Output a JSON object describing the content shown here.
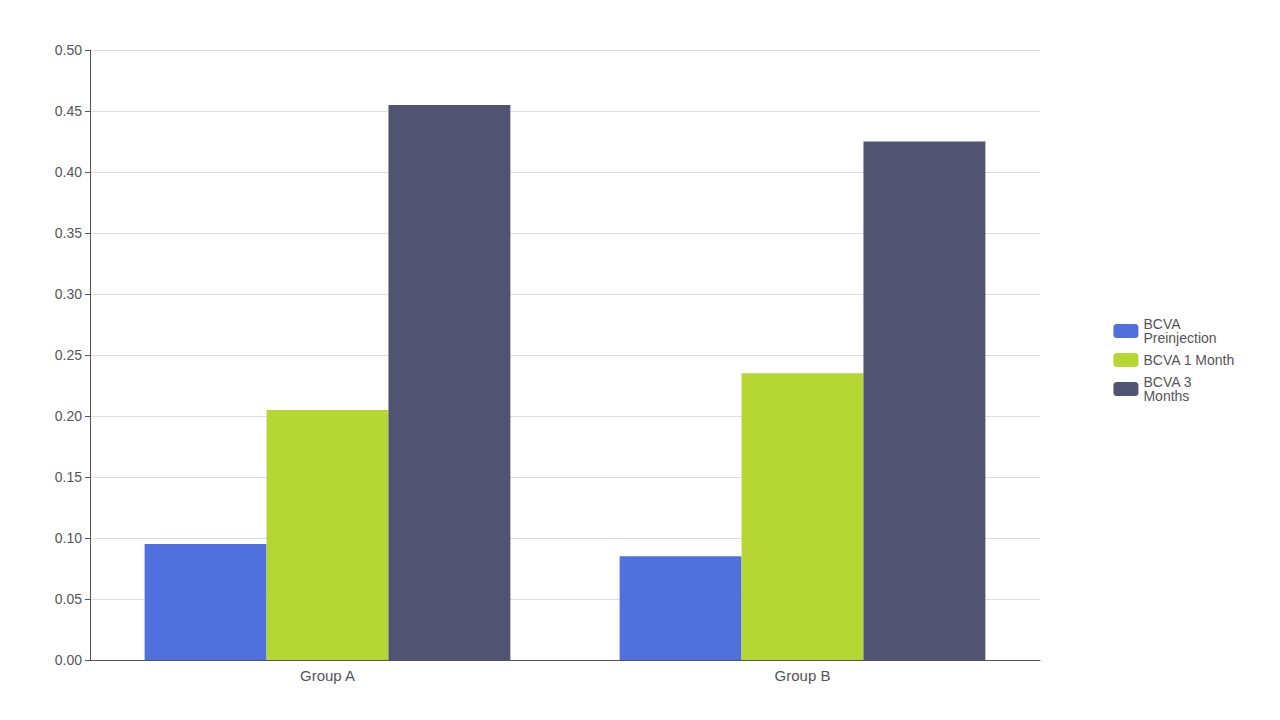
{
  "chart_data": {
    "type": "bar",
    "categories": [
      "Group A",
      "Group B"
    ],
    "series": [
      {
        "name": "BCVA\nPreinjection",
        "values": [
          0.095,
          0.085
        ]
      },
      {
        "name": "BCVA 1 Month",
        "values": [
          0.205,
          0.235
        ]
      },
      {
        "name": "BCVA 3\nMonths",
        "values": [
          0.455,
          0.425
        ]
      }
    ],
    "ylim": [
      0,
      0.5
    ],
    "yticks": [
      {
        "value": 0,
        "label": "0.00"
      },
      {
        "value": 0.05,
        "label": "0.05"
      },
      {
        "value": 0.1,
        "label": "0.10"
      },
      {
        "value": 0.15,
        "label": "0.15"
      },
      {
        "value": 0.2,
        "label": "0.20"
      },
      {
        "value": 0.25,
        "label": "0.25"
      },
      {
        "value": 0.3,
        "label": "0.30"
      },
      {
        "value": 0.35,
        "label": "0.35"
      },
      {
        "value": 0.4,
        "label": "0.40"
      },
      {
        "value": 0.45,
        "label": "0.45"
      },
      {
        "value": 0.5,
        "label": "0.50"
      }
    ],
    "grid": true,
    "legend": "right"
  }
}
